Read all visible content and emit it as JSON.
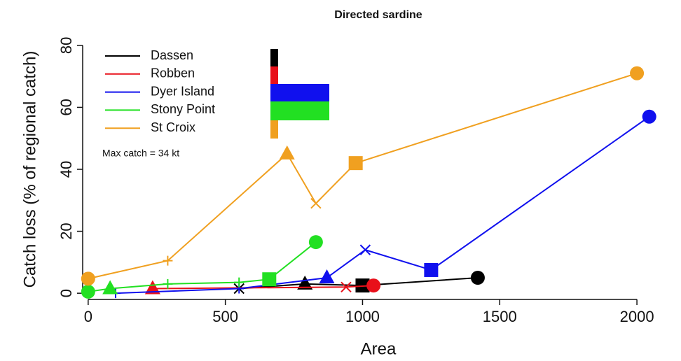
{
  "chart_data": {
    "type": "line",
    "title": "Directed sardine",
    "x_label": "Area",
    "y_label": "Catch loss (% of regional catch)",
    "annotation": "Max catch = 34 kt",
    "xlim": [
      -20,
      2130
    ],
    "ylim": [
      -2,
      82
    ],
    "xticks": [
      0,
      500,
      1000,
      1500,
      2000
    ],
    "yticks": [
      0,
      20,
      40,
      60,
      80
    ],
    "series": [
      {
        "name": "Dassen",
        "color": "#000000",
        "x": [
          550,
          790,
          1000,
          1420
        ],
        "values": [
          1.5,
          3,
          2.5,
          5
        ],
        "markers": [
          "cross",
          "triangle",
          "square",
          "circle"
        ]
      },
      {
        "name": "Robben",
        "color": "#e8101a",
        "x": [
          235,
          940,
          1040
        ],
        "values": [
          1.5,
          2,
          2.5
        ],
        "markers": [
          "triangle",
          "cross",
          "circle"
        ]
      },
      {
        "name": "Dyer Island",
        "color": "#1010ee",
        "x": [
          100,
          550,
          870,
          1010,
          1250,
          2045
        ],
        "values": [
          0,
          1.5,
          5,
          14,
          7.5,
          57
        ],
        "markers": [
          "plus",
          "plus",
          "triangle",
          "cross",
          "square",
          "circle"
        ]
      },
      {
        "name": "Stony Point",
        "color": "#22e022",
        "x": [
          0,
          80,
          290,
          550,
          660,
          830
        ],
        "values": [
          0.5,
          1.5,
          3,
          3.5,
          4.5,
          16.5
        ],
        "markers": [
          "circle",
          "triangle",
          "plus",
          "plus",
          "square",
          "circle"
        ]
      },
      {
        "name": "St Croix",
        "color": "#f0a020",
        "x": [
          0,
          290,
          725,
          830,
          975,
          2000
        ],
        "values": [
          4.7,
          10.5,
          45,
          29,
          42,
          71
        ],
        "markers": [
          "circle",
          "plus",
          "triangle",
          "cross",
          "square",
          "circle"
        ]
      }
    ]
  }
}
